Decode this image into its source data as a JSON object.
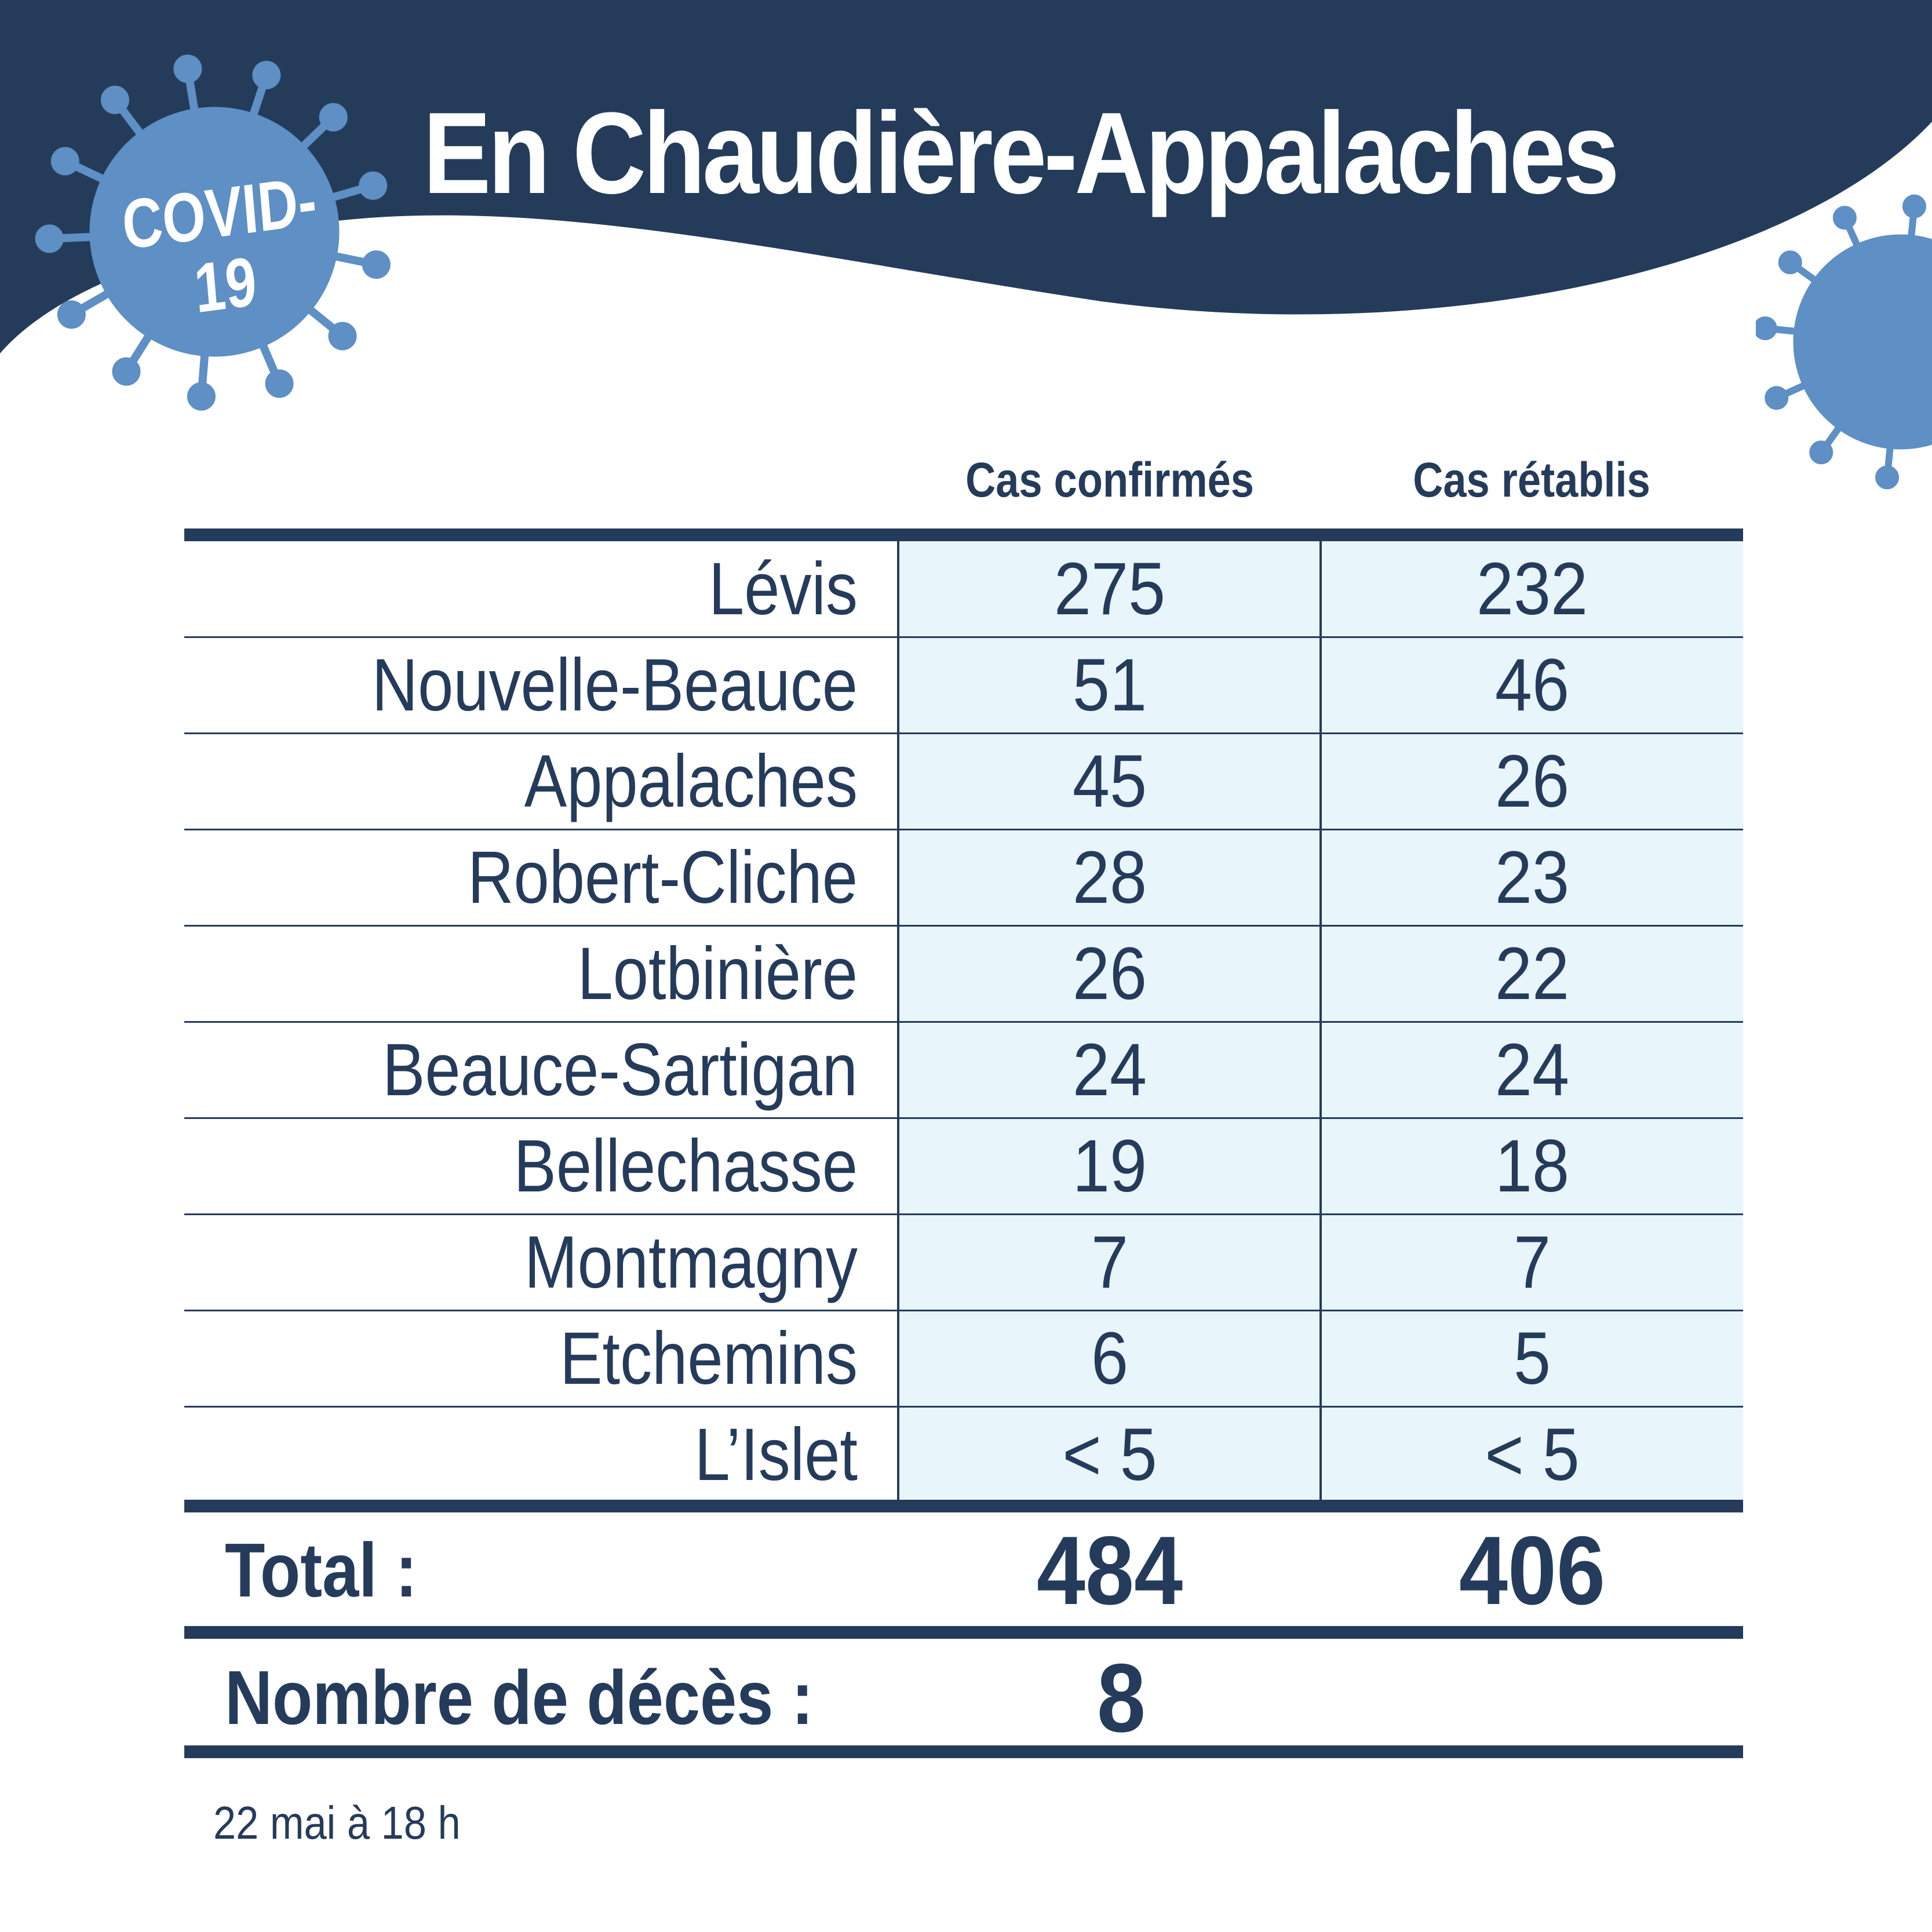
{
  "header": {
    "title": "En Chaudière-Appalaches",
    "badge": [
      "COVID-",
      "19"
    ]
  },
  "table": {
    "columns": [
      "Cas confirmés",
      "Cas rétablis"
    ],
    "rows": [
      {
        "region": "Lévis",
        "confirmed": "275",
        "recovered": "232"
      },
      {
        "region": "Nouvelle-Beauce",
        "confirmed": "51",
        "recovered": "46"
      },
      {
        "region": "Appalaches",
        "confirmed": "45",
        "recovered": "26"
      },
      {
        "region": "Robert-Cliche",
        "confirmed": "28",
        "recovered": "23"
      },
      {
        "region": "Lotbinière",
        "confirmed": "26",
        "recovered": "22"
      },
      {
        "region": "Beauce-Sartigan",
        "confirmed": "24",
        "recovered": "24"
      },
      {
        "region": "Bellechasse",
        "confirmed": "19",
        "recovered": "18"
      },
      {
        "region": "Montmagny",
        "confirmed": "7",
        "recovered": "7"
      },
      {
        "region": "Etchemins",
        "confirmed": "6",
        "recovered": "5"
      },
      {
        "region": "L’Islet",
        "confirmed": "< 5",
        "recovered": "< 5"
      }
    ]
  },
  "totals": {
    "label": "Total :",
    "confirmed": "484",
    "recovered": "406"
  },
  "deaths": {
    "label": "Nombre de décès :",
    "value": "8"
  },
  "footnote": "22 mai à 18 h",
  "colors": {
    "navy": "#243c5a",
    "virus_blue": "#5e8fc5",
    "cell_shade": "#e8f5fa",
    "text": "#253b5b"
  }
}
